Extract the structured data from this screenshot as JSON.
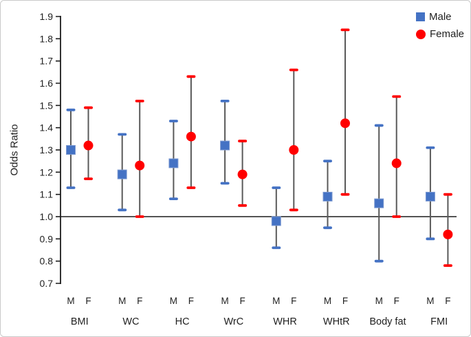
{
  "figure": {
    "background": "#ffffff",
    "border_color": "#c9c9c9"
  },
  "chart_data": {
    "type": "scatter",
    "title": "",
    "ylabel": "Odds Ratio",
    "xlabel": "",
    "ylim": [
      0.7,
      1.9
    ],
    "yticks": [
      "1.9",
      "1.8",
      "1.7",
      "1.6",
      "1.5",
      "1.4",
      "1.3",
      "1.2",
      "1.1",
      "1.0",
      "0.9",
      "0.8",
      "0.7"
    ],
    "reference_line": 1.0,
    "grid": false,
    "categories": [
      "BMI",
      "WC",
      "HC",
      "WrC",
      "WHR",
      "WHtR",
      "Body fat",
      "FMI"
    ],
    "sex_labels": [
      "M",
      "F"
    ],
    "series": [
      {
        "name": "Male",
        "marker": "square",
        "color": "#4472C4",
        "points": [
          {
            "category": "BMI",
            "value": 1.3,
            "lower": 1.13,
            "upper": 1.48
          },
          {
            "category": "WC",
            "value": 1.19,
            "lower": 1.03,
            "upper": 1.37
          },
          {
            "category": "HC",
            "value": 1.24,
            "lower": 1.08,
            "upper": 1.43
          },
          {
            "category": "WrC",
            "value": 1.32,
            "lower": 1.15,
            "upper": 1.52
          },
          {
            "category": "WHR",
            "value": 0.98,
            "lower": 0.86,
            "upper": 1.13
          },
          {
            "category": "WHtR",
            "value": 1.09,
            "lower": 0.95,
            "upper": 1.25
          },
          {
            "category": "Body fat",
            "value": 1.06,
            "lower": 0.8,
            "upper": 1.41
          },
          {
            "category": "FMI",
            "value": 1.09,
            "lower": 0.9,
            "upper": 1.31
          }
        ]
      },
      {
        "name": "Female",
        "marker": "circle",
        "color": "#FF0000",
        "points": [
          {
            "category": "BMI",
            "value": 1.32,
            "lower": 1.17,
            "upper": 1.49
          },
          {
            "category": "WC",
            "value": 1.23,
            "lower": 1.0,
            "upper": 1.52
          },
          {
            "category": "HC",
            "value": 1.36,
            "lower": 1.13,
            "upper": 1.63
          },
          {
            "category": "WrC",
            "value": 1.19,
            "lower": 1.05,
            "upper": 1.34
          },
          {
            "category": "WHR",
            "value": 1.3,
            "lower": 1.03,
            "upper": 1.66
          },
          {
            "category": "WHtR",
            "value": 1.42,
            "lower": 1.1,
            "upper": 1.84
          },
          {
            "category": "Body fat",
            "value": 1.24,
            "lower": 1.0,
            "upper": 1.54
          },
          {
            "category": "FMI",
            "value": 0.92,
            "lower": 0.78,
            "upper": 1.1
          }
        ]
      }
    ],
    "legend": {
      "position": "top-right",
      "entries": [
        {
          "label": "Male",
          "marker": "square",
          "color": "#4472C4"
        },
        {
          "label": "Female",
          "marker": "circle",
          "color": "#FF0000"
        }
      ]
    },
    "error_bar_color": "#595959",
    "axis_color": "#1a1a1a"
  }
}
